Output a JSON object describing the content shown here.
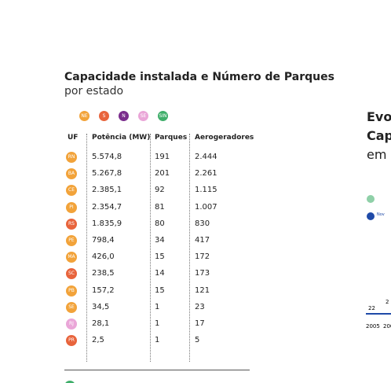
{
  "header": {
    "title": "Capacidade instalada e Número de Parques",
    "subtitle": "por estado"
  },
  "legend": [
    {
      "label": "NE",
      "color": "#f2a33a"
    },
    {
      "label": "S",
      "color": "#e8643c"
    },
    {
      "label": "N",
      "color": "#7a2c8c"
    },
    {
      "label": "SE",
      "color": "#eaa6d8"
    },
    {
      "label": "SIN",
      "color": "#3fae6a"
    }
  ],
  "table": {
    "columns": [
      "UF",
      "Potência (MW)",
      "Parques",
      "Aerogeradores"
    ],
    "rows": [
      {
        "uf": "RN",
        "color": "#f2a33a",
        "cells": [
          "5.574,8",
          "191",
          "2.444"
        ]
      },
      {
        "uf": "BA",
        "color": "#f2a33a",
        "cells": [
          "5.267,8",
          "201",
          "2.261"
        ]
      },
      {
        "uf": "CE",
        "color": "#f2a33a",
        "cells": [
          "2.385,1",
          "92",
          "1.115"
        ]
      },
      {
        "uf": "PI",
        "color": "#f2a33a",
        "cells": [
          "2.354,7",
          "81",
          "1.007"
        ]
      },
      {
        "uf": "RS",
        "color": "#e8643c",
        "cells": [
          "1.835,9",
          "80",
          "830"
        ]
      },
      {
        "uf": "PE",
        "color": "#f2a33a",
        "cells": [
          "798,4",
          "34",
          "417"
        ]
      },
      {
        "uf": "MA",
        "color": "#f2a33a",
        "cells": [
          "426,0",
          "15",
          "172"
        ]
      },
      {
        "uf": "SC",
        "color": "#e8643c",
        "cells": [
          "238,5",
          "14",
          "173"
        ]
      },
      {
        "uf": "PB",
        "color": "#f2a33a",
        "cells": [
          "157,2",
          "15",
          "121"
        ]
      },
      {
        "uf": "SE",
        "color": "#f2a33a",
        "cells": [
          "34,5",
          "1",
          "23"
        ]
      },
      {
        "uf": "RJ",
        "color": "#eaa6d8",
        "cells": [
          "28,1",
          "1",
          "17"
        ]
      },
      {
        "uf": "PR",
        "color": "#e8643c",
        "cells": [
          "2,5",
          "1",
          "5"
        ]
      }
    ]
  },
  "side": {
    "title_lines": [
      "Evo",
      "Cap",
      "em"
    ],
    "legend_text": "Nov",
    "values": [
      "22",
      "2"
    ],
    "years": [
      "2005",
      "200"
    ]
  }
}
